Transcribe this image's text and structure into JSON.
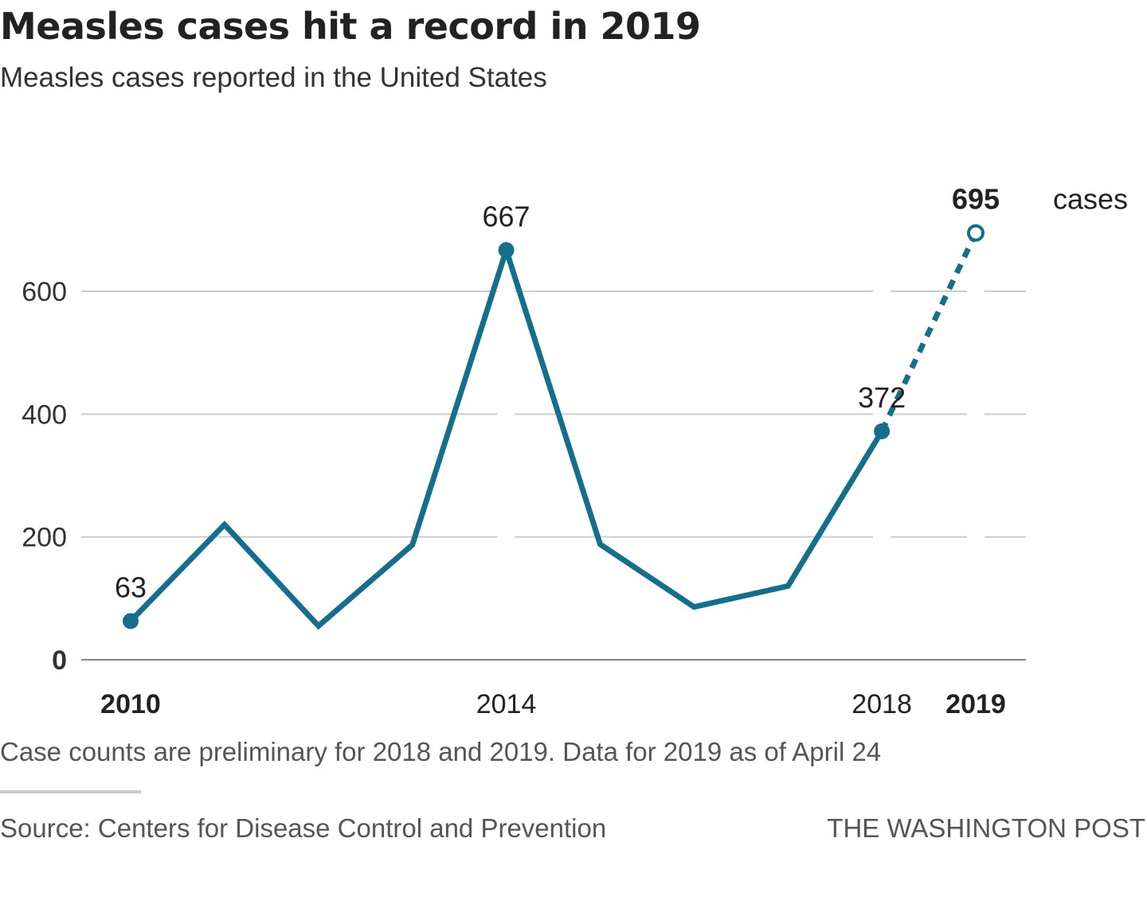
{
  "title": "Measles cases hit a record in 2019",
  "subtitle": "Measles cases reported in the United States",
  "note": "Case counts are preliminary for 2018 and 2019. Data for 2019 as of April 24",
  "source": "Source: Centers for Disease Control and Prevention",
  "credit": "THE WASHINGTON POST",
  "colors": {
    "line": "#156f8c",
    "grid": "#cccccc",
    "axis": "#888888",
    "text": "#222222"
  },
  "chart_data": {
    "type": "line",
    "title": "Measles cases hit a record in 2019",
    "ylabel": "cases",
    "xlabel": "",
    "ylim": [
      0,
      700
    ],
    "yticks": [
      0,
      200,
      400,
      600
    ],
    "xticks": [
      {
        "value": 2010,
        "label": "2010",
        "bold": true
      },
      {
        "value": 2014,
        "label": "2014",
        "bold": false
      },
      {
        "value": 2018,
        "label": "2018",
        "bold": false
      },
      {
        "value": 2019,
        "label": "2019",
        "bold": true
      }
    ],
    "x": [
      2010,
      2011,
      2012,
      2013,
      2014,
      2015,
      2016,
      2017,
      2018,
      2019
    ],
    "series": [
      {
        "name": "Measles cases",
        "values": [
          63,
          220,
          55,
          187,
          667,
          188,
          86,
          120,
          372,
          695
        ]
      }
    ],
    "preliminary_from": 2018,
    "labeled_points": [
      {
        "x": 2010,
        "label": "63",
        "bold": false,
        "marker": "filled"
      },
      {
        "x": 2014,
        "label": "667",
        "bold": false,
        "marker": "filled"
      },
      {
        "x": 2018,
        "label": "372",
        "bold": false,
        "marker": "filled"
      },
      {
        "x": 2019,
        "label": "695",
        "bold": true,
        "marker": "open"
      }
    ],
    "unit_label": "cases"
  }
}
